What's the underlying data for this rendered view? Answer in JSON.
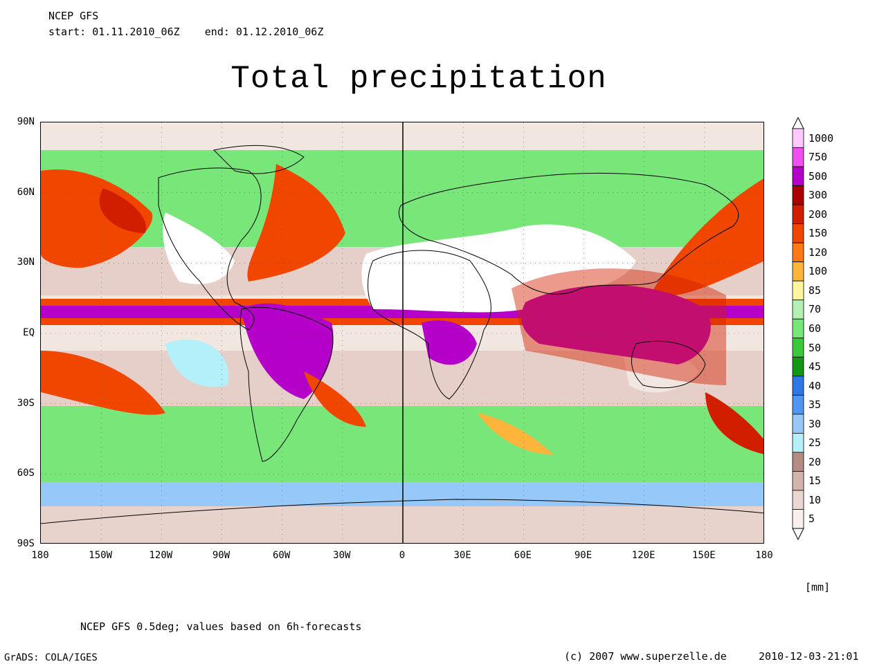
{
  "header": {
    "model": "NCEP GFS",
    "period": "start: 01.11.2010_06Z    end: 01.12.2010_06Z"
  },
  "title": "Total precipitation",
  "map": {
    "projection": "equirectangular",
    "lon_range": [
      -180,
      180
    ],
    "lat_range": [
      -90,
      90
    ],
    "y_ticks": [
      "90N",
      "60N",
      "30N",
      "EQ",
      "30S",
      "60S",
      "90S"
    ],
    "x_ticks": [
      "180",
      "150W",
      "120W",
      "90W",
      "60W",
      "30W",
      "0",
      "30E",
      "60E",
      "90E",
      "120E",
      "150E",
      "180"
    ],
    "field": "total precipitation, 30-day accumulation"
  },
  "colorbar": {
    "labels": [
      "1000",
      "750",
      "500",
      "300",
      "200",
      "150",
      "120",
      "100",
      "85",
      "70",
      "60",
      "50",
      "45",
      "40",
      "35",
      "30",
      "25",
      "20",
      "15",
      "10",
      "5"
    ],
    "colors": [
      "#ffc8ff",
      "#f050f0",
      "#b400c8",
      "#aa0000",
      "#d21e00",
      "#f04600",
      "#ff7814",
      "#ffb43c",
      "#fff5a0",
      "#b4f0b4",
      "#78e678",
      "#3cc83c",
      "#139613",
      "#2d78e6",
      "#5096f0",
      "#96c8fa",
      "#b4f0fa",
      "#b48c82",
      "#d2b4aa",
      "#ebd7d2",
      "#faf0eb"
    ],
    "unit": "[mm]"
  },
  "footer": {
    "source": "NCEP GFS 0.5deg; values based on 6h-forecasts",
    "software": "GrADS: COLA/IGES",
    "copyright": "(c) 2007 www.superzelle.de",
    "timestamp": "2010-12-03-21:01"
  }
}
